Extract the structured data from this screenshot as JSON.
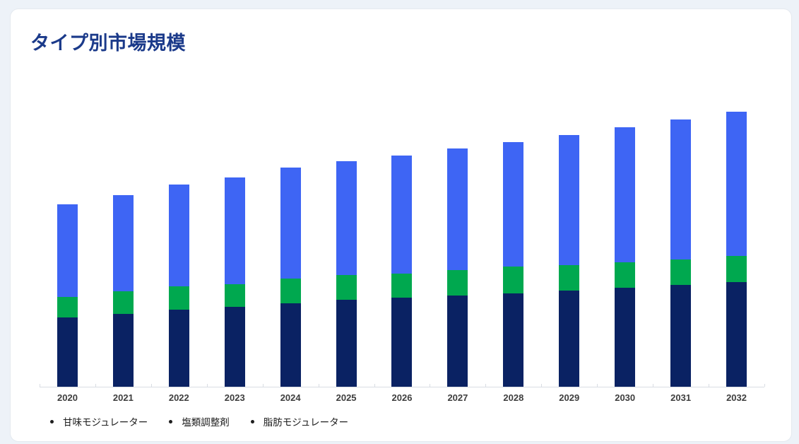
{
  "card": {
    "background": "#ffffff",
    "border_color": "#e4e9ef"
  },
  "page_background": "#edf2f8",
  "title_color": "#1b3a8a",
  "axis_color": "#d9dde3",
  "legend_bullet_color": "#1e1e1e",
  "legend_bullet": "•",
  "chart_data": {
    "type": "bar",
    "stacked": true,
    "title": "タイプ別市場規模",
    "xlabel": "",
    "ylabel": "",
    "grid": false,
    "legend_position": "bottom-left",
    "y_axis_shown": false,
    "ylim": [
      0,
      534
    ],
    "categories": [
      "2020",
      "2021",
      "2022",
      "2023",
      "2024",
      "2025",
      "2026",
      "2027",
      "2028",
      "2029",
      "2030",
      "2031",
      "2032"
    ],
    "series": [
      {
        "name": "甘味モジュレーター",
        "color": "#0a2263",
        "values": [
          98,
          103,
          109,
          113,
          118,
          123,
          126,
          129,
          132,
          136,
          140,
          144,
          148
        ]
      },
      {
        "name": "塩類調整剤",
        "color": "#00a84f",
        "values": [
          29,
          32,
          33,
          32,
          35,
          35,
          34,
          36,
          38,
          36,
          36,
          36,
          37
        ]
      },
      {
        "name": "脂肪モジュレーター",
        "color": "#3e65f4",
        "values": [
          131,
          136,
          144,
          151,
          157,
          161,
          167,
          172,
          176,
          184,
          191,
          198,
          204
        ]
      }
    ]
  }
}
